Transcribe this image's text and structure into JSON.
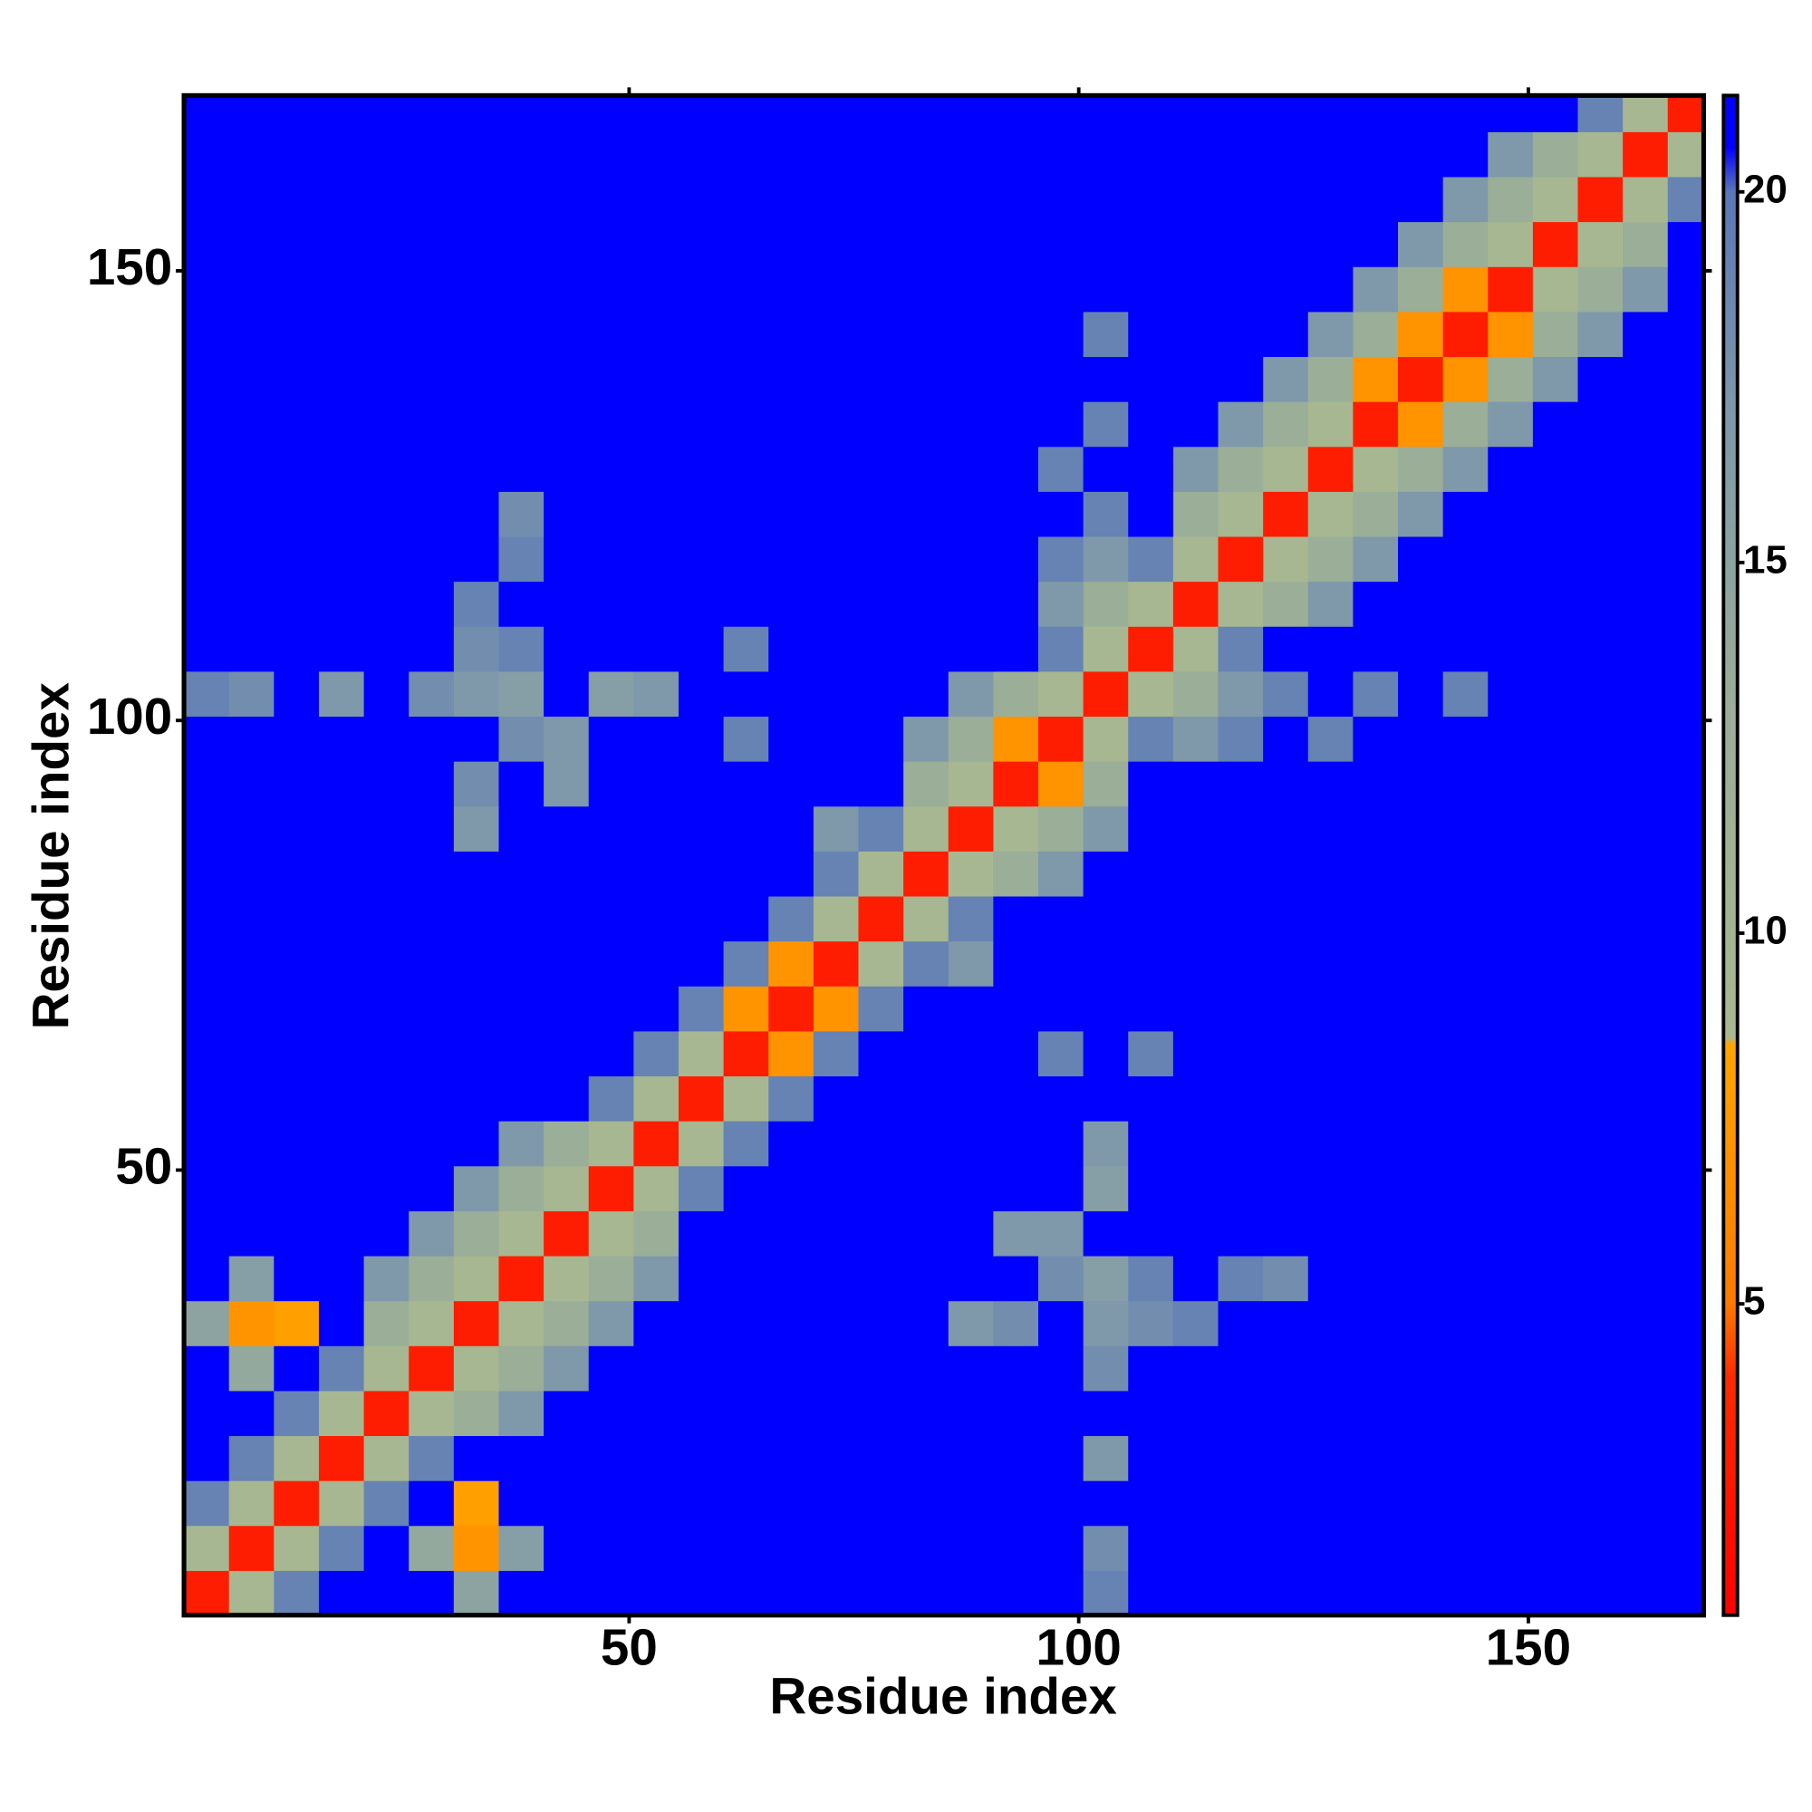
{
  "chart_data": {
    "type": "heatmap",
    "xlabel": "Residue index",
    "ylabel": "Residue index",
    "x_bins": [
      0.5,
      5.5,
      10.5,
      15.5,
      20.5,
      25.5,
      30.5,
      35.5,
      40.5,
      45.5,
      50.5,
      55.5,
      60.5,
      65.5,
      70.5,
      75.5,
      80.5,
      85.5,
      90.5,
      95.5,
      100.5,
      105.5,
      110.5,
      115.5,
      120.5,
      125.5,
      130.5,
      135.5,
      140.5,
      145.5,
      150.5,
      155.5,
      160.5,
      165.5,
      169.5
    ],
    "y_bins": [
      0.5,
      5.5,
      10.5,
      15.5,
      20.5,
      25.5,
      30.5,
      35.5,
      40.5,
      45.5,
      50.5,
      55.5,
      60.5,
      65.5,
      70.5,
      75.5,
      80.5,
      85.5,
      90.5,
      95.5,
      100.5,
      105.5,
      110.5,
      115.5,
      120.5,
      125.5,
      130.5,
      135.5,
      140.5,
      145.5,
      150.5,
      155.5,
      160.5,
      165.5,
      169.5
    ],
    "xlim": [
      0.5,
      169.5
    ],
    "ylim": [
      0.5,
      169.5
    ],
    "xticks": [
      50,
      100,
      150
    ],
    "yticks": [
      50,
      100,
      150
    ],
    "colorbar_lim": [
      0.8,
      21.3
    ],
    "colorbar_ticks": [
      5,
      10,
      15,
      20
    ],
    "colorscale": [
      [
        0.8,
        "#ff0000"
      ],
      [
        4,
        "#ff2a00"
      ],
      [
        5,
        "#ff7a00"
      ],
      [
        8.5,
        "#ffa500"
      ],
      [
        8.6,
        "#a8b890"
      ],
      [
        13,
        "#9aae98"
      ],
      [
        17,
        "#7f98aa"
      ],
      [
        20,
        "#5a78b8"
      ],
      [
        20.6,
        "#0000ff"
      ],
      [
        21.3,
        "#0000ff"
      ]
    ],
    "values": [
      [
        3,
        9,
        19,
        21,
        21,
        21,
        15,
        21,
        21,
        21,
        21,
        21,
        21,
        21,
        21,
        21,
        21,
        21,
        21,
        21,
        19,
        21,
        21,
        21,
        21,
        21,
        21,
        21,
        21,
        21,
        21,
        21,
        21,
        21
      ],
      [
        9,
        3,
        9,
        19,
        21,
        14,
        7,
        16,
        21,
        21,
        21,
        21,
        21,
        21,
        21,
        21,
        21,
        21,
        21,
        21,
        18,
        21,
        21,
        21,
        21,
        21,
        21,
        21,
        21,
        21,
        21,
        21,
        21,
        21
      ],
      [
        19,
        9,
        3,
        9,
        19,
        21,
        8,
        21,
        21,
        21,
        21,
        21,
        21,
        21,
        21,
        21,
        21,
        21,
        21,
        21,
        21,
        21,
        21,
        21,
        21,
        21,
        21,
        21,
        21,
        21,
        21,
        21,
        21,
        21
      ],
      [
        21,
        19,
        9,
        3,
        9,
        19,
        21,
        21,
        21,
        21,
        21,
        21,
        21,
        21,
        21,
        21,
        21,
        21,
        21,
        21,
        17,
        21,
        21,
        21,
        21,
        21,
        21,
        21,
        21,
        21,
        21,
        21,
        21,
        21
      ],
      [
        21,
        21,
        19,
        9,
        3,
        9,
        13,
        17,
        21,
        21,
        21,
        21,
        21,
        21,
        21,
        21,
        21,
        21,
        21,
        21,
        21,
        21,
        21,
        21,
        21,
        21,
        21,
        21,
        21,
        21,
        21,
        21,
        21,
        21
      ],
      [
        21,
        14,
        21,
        19,
        9,
        3,
        9,
        13,
        17,
        21,
        21,
        21,
        21,
        21,
        21,
        21,
        21,
        21,
        21,
        21,
        18,
        21,
        21,
        21,
        21,
        21,
        21,
        21,
        21,
        21,
        21,
        21,
        21,
        21
      ],
      [
        15,
        7,
        8,
        21,
        13,
        9,
        3,
        9,
        13,
        17,
        21,
        21,
        21,
        21,
        21,
        21,
        21,
        17,
        18,
        21,
        17,
        18,
        19,
        21,
        21,
        21,
        21,
        21,
        21,
        21,
        21,
        21,
        21,
        21
      ],
      [
        21,
        16,
        21,
        21,
        17,
        13,
        9,
        3,
        9,
        13,
        17,
        21,
        21,
        21,
        21,
        21,
        21,
        21,
        21,
        18,
        16,
        19,
        21,
        19,
        18,
        21,
        21,
        21,
        21,
        21,
        21,
        21,
        21,
        21
      ],
      [
        21,
        21,
        21,
        21,
        21,
        17,
        13,
        9,
        3,
        9,
        13,
        21,
        21,
        21,
        21,
        21,
        21,
        21,
        17,
        17,
        21,
        21,
        21,
        21,
        21,
        21,
        21,
        21,
        21,
        21,
        21,
        21,
        21,
        21
      ],
      [
        21,
        21,
        21,
        21,
        21,
        21,
        17,
        13,
        9,
        3,
        9,
        19,
        21,
        21,
        21,
        21,
        21,
        21,
        21,
        21,
        16,
        21,
        21,
        21,
        21,
        21,
        21,
        21,
        21,
        21,
        21,
        21,
        21,
        21
      ],
      [
        21,
        21,
        21,
        21,
        21,
        21,
        21,
        17,
        13,
        9,
        3,
        9,
        19,
        21,
        21,
        21,
        21,
        21,
        21,
        21,
        17,
        21,
        21,
        21,
        21,
        21,
        21,
        21,
        21,
        21,
        21,
        21,
        21,
        21
      ],
      [
        21,
        21,
        21,
        21,
        21,
        21,
        21,
        21,
        21,
        19,
        9,
        3,
        9,
        19,
        21,
        21,
        21,
        21,
        21,
        21,
        21,
        21,
        21,
        21,
        21,
        21,
        21,
        21,
        21,
        21,
        21,
        21,
        21,
        21
      ],
      [
        21,
        21,
        21,
        21,
        21,
        21,
        21,
        21,
        21,
        21,
        19,
        9,
        3,
        7,
        19,
        21,
        21,
        21,
        21,
        19,
        21,
        19,
        21,
        21,
        21,
        21,
        21,
        21,
        21,
        21,
        21,
        21,
        21,
        21
      ],
      [
        21,
        21,
        21,
        21,
        21,
        21,
        21,
        21,
        21,
        21,
        21,
        19,
        7,
        3,
        7,
        19,
        21,
        21,
        21,
        21,
        21,
        21,
        21,
        21,
        21,
        21,
        21,
        21,
        21,
        21,
        21,
        21,
        21,
        21
      ],
      [
        21,
        21,
        21,
        21,
        21,
        21,
        21,
        21,
        21,
        21,
        21,
        21,
        19,
        7,
        3,
        9,
        19,
        17,
        21,
        21,
        21,
        21,
        21,
        21,
        21,
        21,
        21,
        21,
        21,
        21,
        21,
        21,
        21,
        21
      ],
      [
        21,
        21,
        21,
        21,
        21,
        21,
        21,
        21,
        21,
        21,
        21,
        21,
        21,
        19,
        9,
        3,
        9,
        19,
        21,
        21,
        21,
        21,
        21,
        21,
        21,
        21,
        21,
        21,
        21,
        21,
        21,
        21,
        21,
        21
      ],
      [
        21,
        21,
        21,
        21,
        21,
        21,
        21,
        21,
        21,
        21,
        21,
        21,
        21,
        21,
        19,
        9,
        3,
        9,
        13,
        17,
        21,
        21,
        21,
        21,
        21,
        21,
        21,
        21,
        21,
        21,
        21,
        21,
        21,
        21
      ],
      [
        21,
        21,
        21,
        21,
        21,
        21,
        17,
        21,
        21,
        21,
        21,
        21,
        21,
        21,
        17,
        19,
        9,
        3,
        9,
        13,
        17,
        21,
        21,
        21,
        21,
        21,
        21,
        21,
        21,
        21,
        21,
        21,
        21,
        21
      ],
      [
        21,
        21,
        21,
        21,
        21,
        21,
        18,
        21,
        17,
        21,
        21,
        21,
        21,
        21,
        21,
        21,
        13,
        9,
        3,
        7,
        13,
        21,
        21,
        21,
        21,
        21,
        21,
        21,
        21,
        21,
        21,
        21,
        21,
        21
      ],
      [
        21,
        21,
        21,
        21,
        21,
        21,
        21,
        18,
        17,
        21,
        21,
        21,
        19,
        21,
        21,
        21,
        17,
        13,
        7,
        3,
        9,
        19,
        17,
        19,
        21,
        19,
        21,
        21,
        21,
        21,
        21,
        21,
        21,
        21
      ],
      [
        19,
        18,
        21,
        17,
        21,
        18,
        17,
        16,
        21,
        16,
        17,
        21,
        21,
        21,
        21,
        21,
        21,
        17,
        13,
        9,
        3,
        9,
        13,
        17,
        19,
        21,
        19,
        21,
        19,
        21,
        21,
        21,
        21,
        21
      ],
      [
        21,
        21,
        21,
        21,
        21,
        21,
        18,
        19,
        21,
        21,
        21,
        21,
        19,
        21,
        21,
        21,
        21,
        21,
        21,
        19,
        9,
        3,
        9,
        19,
        21,
        21,
        21,
        21,
        21,
        21,
        21,
        21,
        21,
        21
      ],
      [
        21,
        21,
        21,
        21,
        21,
        21,
        19,
        21,
        21,
        21,
        21,
        21,
        21,
        21,
        21,
        21,
        21,
        21,
        21,
        17,
        13,
        9,
        3,
        9,
        13,
        17,
        21,
        21,
        21,
        21,
        21,
        21,
        21,
        21
      ],
      [
        21,
        21,
        21,
        21,
        21,
        21,
        21,
        19,
        21,
        21,
        21,
        21,
        21,
        21,
        21,
        21,
        21,
        21,
        21,
        19,
        17,
        19,
        9,
        3,
        9,
        13,
        17,
        21,
        21,
        21,
        21,
        21,
        21,
        21
      ],
      [
        21,
        21,
        21,
        21,
        21,
        21,
        21,
        18,
        21,
        21,
        21,
        21,
        21,
        21,
        21,
        21,
        21,
        21,
        21,
        21,
        19,
        21,
        13,
        9,
        3,
        9,
        13,
        17,
        21,
        21,
        21,
        21,
        21,
        21
      ],
      [
        21,
        21,
        21,
        21,
        21,
        21,
        21,
        21,
        21,
        21,
        21,
        21,
        21,
        21,
        21,
        21,
        21,
        21,
        21,
        19,
        21,
        21,
        17,
        13,
        9,
        3,
        9,
        13,
        17,
        21,
        21,
        21,
        21,
        21
      ],
      [
        21,
        21,
        21,
        21,
        21,
        21,
        21,
        21,
        21,
        21,
        21,
        21,
        21,
        21,
        21,
        21,
        21,
        21,
        21,
        21,
        19,
        21,
        21,
        17,
        13,
        9,
        3,
        7,
        13,
        17,
        21,
        21,
        21,
        21
      ],
      [
        21,
        21,
        21,
        21,
        21,
        21,
        21,
        21,
        21,
        21,
        21,
        21,
        21,
        21,
        21,
        21,
        21,
        21,
        21,
        21,
        21,
        21,
        21,
        21,
        17,
        13,
        7,
        3,
        7,
        13,
        17,
        21,
        21,
        21
      ],
      [
        21,
        21,
        21,
        21,
        21,
        21,
        21,
        21,
        21,
        21,
        21,
        21,
        21,
        21,
        21,
        21,
        21,
        21,
        21,
        21,
        19,
        21,
        21,
        21,
        21,
        17,
        13,
        7,
        3,
        7,
        13,
        17,
        21,
        21
      ],
      [
        21,
        21,
        21,
        21,
        21,
        21,
        21,
        21,
        21,
        21,
        21,
        21,
        21,
        21,
        21,
        21,
        21,
        21,
        21,
        21,
        21,
        21,
        21,
        21,
        21,
        21,
        17,
        13,
        7,
        3,
        9,
        13,
        17,
        21
      ],
      [
        21,
        21,
        21,
        21,
        21,
        21,
        21,
        21,
        21,
        21,
        21,
        21,
        21,
        21,
        21,
        21,
        21,
        21,
        21,
        21,
        21,
        21,
        21,
        21,
        21,
        21,
        21,
        17,
        13,
        9,
        3,
        9,
        13,
        21
      ],
      [
        21,
        21,
        21,
        21,
        21,
        21,
        21,
        21,
        21,
        21,
        21,
        21,
        21,
        21,
        21,
        21,
        21,
        21,
        21,
        21,
        21,
        21,
        21,
        21,
        21,
        21,
        21,
        21,
        17,
        13,
        9,
        3,
        9,
        19
      ],
      [
        21,
        21,
        21,
        21,
        21,
        21,
        21,
        21,
        21,
        21,
        21,
        21,
        21,
        21,
        21,
        21,
        21,
        21,
        21,
        21,
        21,
        21,
        21,
        21,
        21,
        21,
        21,
        21,
        21,
        17,
        13,
        9,
        3,
        9
      ],
      [
        21,
        21,
        21,
        21,
        21,
        21,
        21,
        21,
        21,
        21,
        21,
        21,
        21,
        21,
        21,
        21,
        21,
        21,
        21,
        21,
        21,
        21,
        21,
        21,
        21,
        21,
        21,
        21,
        21,
        21,
        21,
        19,
        9,
        3
      ]
    ]
  }
}
